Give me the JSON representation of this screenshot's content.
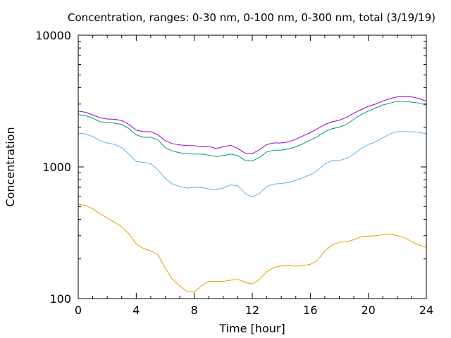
{
  "chart_data": {
    "type": "line",
    "title": "Concentration, ranges: 0-30 nm, 0-100 nm, 0-300 nm, total (3/19/19)",
    "xlabel": "Time [hour]",
    "ylabel": "Concentration",
    "xlim": [
      0,
      24
    ],
    "ylim": [
      100,
      10000
    ],
    "yscale": "log",
    "grid": false,
    "legend": "none",
    "x_ticks": [
      0,
      4,
      8,
      12,
      16,
      20,
      24
    ],
    "y_ticks": [
      100,
      1000,
      10000
    ],
    "x_tick_labels": [
      "0",
      "4",
      "8",
      "12",
      "16",
      "20",
      "24"
    ],
    "y_tick_labels": [
      "100",
      "1000",
      "10000"
    ],
    "x": [
      0,
      0.5,
      1,
      1.5,
      2,
      2.5,
      3,
      3.5,
      4,
      4.5,
      5,
      5.5,
      6,
      6.5,
      7,
      7.5,
      8,
      8.5,
      9,
      9.5,
      10,
      10.5,
      11,
      11.5,
      12,
      12.5,
      13,
      13.5,
      14,
      14.5,
      15,
      15.5,
      16,
      16.5,
      17,
      17.5,
      18,
      18.5,
      19,
      19.5,
      20,
      20.5,
      21,
      21.5,
      22,
      22.5,
      23,
      23.5,
      24
    ],
    "series": [
      {
        "color": "#9400d3",
        "values": [
          2650,
          2600,
          2480,
          2360,
          2310,
          2300,
          2250,
          2100,
          1900,
          1850,
          1850,
          1750,
          1580,
          1500,
          1470,
          1450,
          1450,
          1420,
          1430,
          1380,
          1420,
          1460,
          1380,
          1270,
          1260,
          1350,
          1480,
          1520,
          1520,
          1550,
          1620,
          1720,
          1820,
          1950,
          2100,
          2200,
          2260,
          2380,
          2560,
          2720,
          2880,
          3000,
          3160,
          3300,
          3400,
          3420,
          3400,
          3300,
          3150
        ]
      },
      {
        "color": "#009e73",
        "values": [
          2500,
          2450,
          2350,
          2200,
          2180,
          2150,
          2100,
          1950,
          1750,
          1680,
          1680,
          1600,
          1400,
          1320,
          1280,
          1260,
          1250,
          1250,
          1230,
          1200,
          1220,
          1250,
          1220,
          1120,
          1110,
          1180,
          1300,
          1340,
          1340,
          1370,
          1420,
          1500,
          1600,
          1700,
          1850,
          1950,
          2000,
          2100,
          2300,
          2500,
          2650,
          2800,
          2950,
          3050,
          3150,
          3150,
          3100,
          3050,
          2950
        ]
      },
      {
        "color": "#56b4e9",
        "values": [
          1800,
          1780,
          1700,
          1580,
          1520,
          1480,
          1400,
          1250,
          1100,
          1080,
          1060,
          950,
          820,
          740,
          710,
          690,
          700,
          700,
          680,
          670,
          690,
          730,
          720,
          630,
          590,
          630,
          710,
          740,
          750,
          760,
          790,
          830,
          870,
          940,
          1050,
          1120,
          1120,
          1160,
          1250,
          1380,
          1480,
          1550,
          1660,
          1780,
          1850,
          1850,
          1850,
          1830,
          1780
        ]
      },
      {
        "color": "#e69f00",
        "values": [
          520,
          510,
          480,
          440,
          410,
          380,
          350,
          310,
          260,
          240,
          230,
          215,
          170,
          140,
          125,
          113,
          112,
          125,
          135,
          135,
          135,
          138,
          140,
          133,
          129,
          140,
          160,
          172,
          177,
          178,
          176,
          178,
          182,
          195,
          230,
          255,
          268,
          270,
          280,
          295,
          298,
          300,
          305,
          310,
          300,
          290,
          270,
          255,
          245
        ]
      }
    ]
  }
}
